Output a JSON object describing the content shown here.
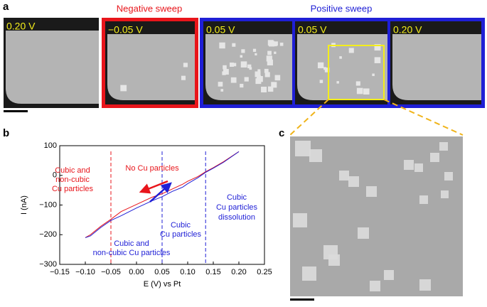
{
  "panels": {
    "a": "a",
    "b": "b",
    "c": "c"
  },
  "sweep_labels": {
    "negative": "Negative sweep",
    "positive": "Positive sweep"
  },
  "image_labels": [
    "0.20 V",
    "−0.05 V",
    "0.05 V",
    "0.05 V",
    "0.20 V"
  ],
  "chart_data": {
    "type": "line",
    "x_label": "E (V) vs Pt",
    "y_label": "I (nA)",
    "x": [
      -0.1,
      -0.09,
      -0.07,
      -0.05,
      -0.03,
      0,
      0.03,
      0.05,
      0.07,
      0.09,
      0.1,
      0.12,
      0.135,
      0.15,
      0.17,
      0.2
    ],
    "series": [
      {
        "color": "#e8151b",
        "values": [
          -210,
          -200,
          -172,
          -148,
          -122,
          -98,
          -74,
          -62,
          -46,
          -30,
          -20,
          -4,
          12,
          26,
          46,
          80
        ]
      },
      {
        "color": "#1f1fd6",
        "values": [
          -210,
          -204,
          -176,
          -152,
          -136,
          -110,
          -86,
          -72,
          -54,
          -40,
          -28,
          -8,
          10,
          24,
          44,
          80
        ]
      }
    ],
    "xlim": [
      -0.15,
      0.25
    ],
    "xticks": [
      {
        "value": -0.15,
        "label": "−0.15"
      },
      {
        "value": -0.1,
        "label": "−0.10"
      },
      {
        "value": -0.05,
        "label": "−0.05"
      },
      {
        "value": 0,
        "label": "0.00"
      },
      0.05,
      {
        "value": 0.1,
        "label": "0.10"
      },
      0.15,
      {
        "value": 0.2,
        "label": "0.20"
      },
      0.25
    ],
    "ylim": [
      -300,
      100
    ],
    "yticks": [
      {
        "value": -300,
        "label": "−300"
      },
      {
        "value": -200,
        "label": "−200"
      },
      {
        "value": -100,
        "label": "−100"
      },
      0,
      100
    ],
    "vlines": [
      {
        "x": -0.05,
        "color": "#e8151b"
      },
      {
        "x": 0.05,
        "color": "#1f1fd6"
      },
      {
        "x": 0.135,
        "color": "#1f1fd6"
      }
    ],
    "annotations": [
      {
        "lines": [
          "Cubic and",
          "non-cubic",
          "Cu particles"
        ],
        "color": "#e8151b"
      },
      {
        "lines": [
          "No Cu particles"
        ],
        "color": "#e8151b"
      },
      {
        "lines": [
          "Cubic and",
          "non-cubic Cu particles"
        ],
        "color": "#1f1fd6"
      },
      {
        "lines": [
          "Cubic",
          "Cu particles"
        ],
        "color": "#1f1fd6"
      },
      {
        "lines": [
          "Cubic",
          "Cu particles",
          "dissolution"
        ],
        "color": "#1f1fd6"
      }
    ]
  }
}
